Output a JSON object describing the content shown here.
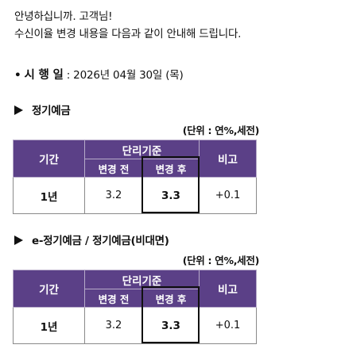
{
  "greeting": {
    "line1": "안녕하십니까. 고객님!",
    "line2": "수신이율 변경 내용을 다음과 같이 안내해 드립니다."
  },
  "effective_date": {
    "bullet": "•",
    "label": "시 행 일",
    "value": " : 2026년 04월 30일 (목)"
  },
  "tables": [
    {
      "title": "정기예금",
      "unit": "(단위 : 연%,세전)",
      "headers": {
        "term": "기간",
        "basis": "단리기준",
        "before": "변경 전",
        "after": "변경 후",
        "note": "비고"
      },
      "rows": [
        {
          "term": "1년",
          "before": "3.2",
          "after": "3.3",
          "note": "+0.1"
        }
      ]
    },
    {
      "title": "e-정기예금 / 정기예금(비대면)",
      "unit": "(단위 : 연%,세전)",
      "headers": {
        "term": "기간",
        "basis": "단리기준",
        "before": "변경 전",
        "after": "변경 후",
        "note": "비고"
      },
      "rows": [
        {
          "term": "1년",
          "before": "3.2",
          "after": "3.3",
          "note": "+0.1"
        }
      ]
    }
  ]
}
